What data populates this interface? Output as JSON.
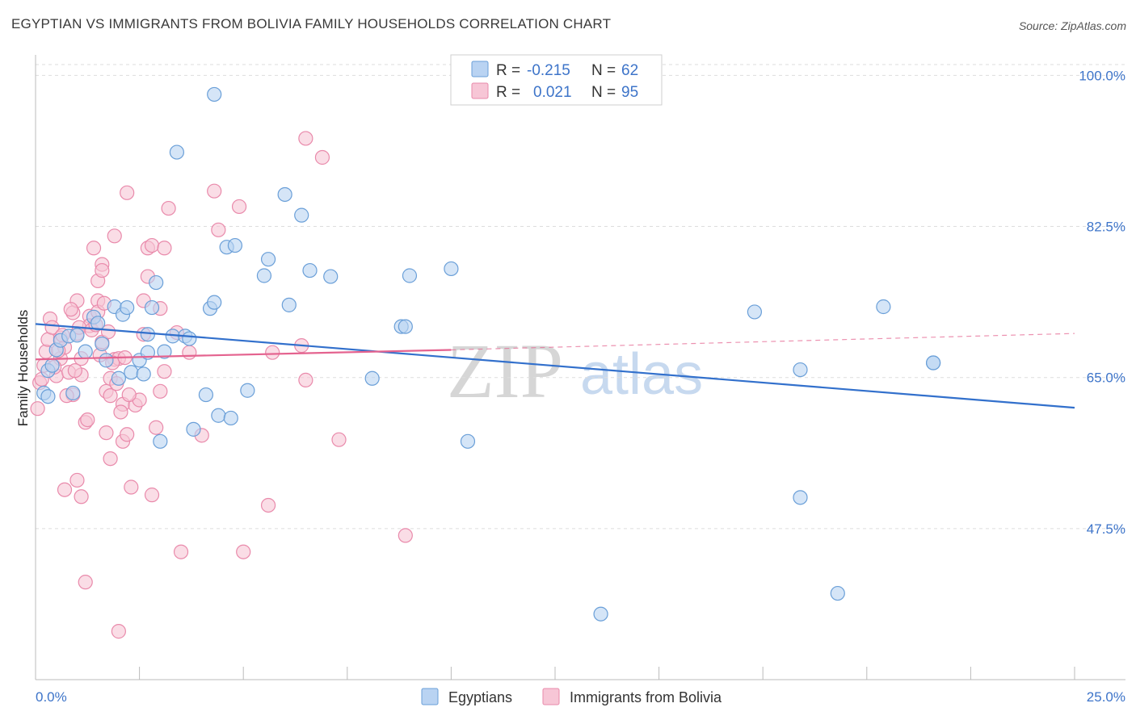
{
  "title": "EGYPTIAN VS IMMIGRANTS FROM BOLIVIA FAMILY HOUSEHOLDS CORRELATION CHART",
  "source": "Source: ZipAtlas.com",
  "watermark": {
    "zip": "ZIP",
    "atlas": "atlas"
  },
  "legend": {
    "rows": [
      {
        "r_label": "R =",
        "r_value": "-0.215",
        "n_label": "N =",
        "n_value": "62"
      },
      {
        "r_label": "R =",
        "r_value": "0.021",
        "n_label": "N =",
        "n_value": "95"
      }
    ]
  },
  "bottom_legend": [
    "Egyptians",
    "Immigrants from Bolivia"
  ],
  "colors": {
    "blue_fill": "#b9d3f2",
    "blue_stroke": "#6a9fd8",
    "blue_line": "#3270cc",
    "pink_fill": "#f7c6d6",
    "pink_stroke": "#e98aab",
    "pink_line": "#e4638f",
    "axis_text": "#3d74c9",
    "grid": "#dddddd"
  },
  "chart_data": {
    "type": "scatter",
    "title": "EGYPTIAN VS IMMIGRANTS FROM BOLIVIA FAMILY HOUSEHOLDS CORRELATION CHART",
    "xlabel": "",
    "ylabel": "Family Households",
    "xlim": [
      0,
      25
    ],
    "ylim": [
      30,
      102
    ],
    "x_tick_labels": [
      "0.0%",
      "25.0%"
    ],
    "y_ticks": [
      47.5,
      65.0,
      82.5,
      100.0
    ],
    "y_tick_labels": [
      "47.5%",
      "65.0%",
      "82.5%",
      "100.0%"
    ],
    "grid": true,
    "legend_position": "top-center",
    "series": [
      {
        "name": "Egyptians",
        "r": -0.215,
        "n": 62,
        "trend": {
          "x": [
            0,
            25
          ],
          "y": [
            71.2,
            61.5
          ]
        },
        "points": [
          [
            0.2,
            63.2
          ],
          [
            0.3,
            62.8
          ],
          [
            0.3,
            65.8
          ],
          [
            0.4,
            66.4
          ],
          [
            0.5,
            68.2
          ],
          [
            0.6,
            69.3
          ],
          [
            0.8,
            69.8
          ],
          [
            0.9,
            63.2
          ],
          [
            1.0,
            69.9
          ],
          [
            1.2,
            68.0
          ],
          [
            1.4,
            72.0
          ],
          [
            1.5,
            71.3
          ],
          [
            1.6,
            68.9
          ],
          [
            1.7,
            67.0
          ],
          [
            1.9,
            73.2
          ],
          [
            2.0,
            64.9
          ],
          [
            2.1,
            72.3
          ],
          [
            2.2,
            73.1
          ],
          [
            2.3,
            65.6
          ],
          [
            2.5,
            67.0
          ],
          [
            2.6,
            65.4
          ],
          [
            2.7,
            67.9
          ],
          [
            2.7,
            70.0
          ],
          [
            2.8,
            73.1
          ],
          [
            2.9,
            76.0
          ],
          [
            3.0,
            57.6
          ],
          [
            3.1,
            68.0
          ],
          [
            3.3,
            69.8
          ],
          [
            3.4,
            91.1
          ],
          [
            3.6,
            69.8
          ],
          [
            3.7,
            69.5
          ],
          [
            3.8,
            59.0
          ],
          [
            4.1,
            63.0
          ],
          [
            4.2,
            73.0
          ],
          [
            4.3,
            73.7
          ],
          [
            4.3,
            97.8
          ],
          [
            4.4,
            60.6
          ],
          [
            4.6,
            80.1
          ],
          [
            4.7,
            60.3
          ],
          [
            4.8,
            80.3
          ],
          [
            5.1,
            63.5
          ],
          [
            5.5,
            76.8
          ],
          [
            5.6,
            78.7
          ],
          [
            6.0,
            86.2
          ],
          [
            6.1,
            73.4
          ],
          [
            6.4,
            83.8
          ],
          [
            6.6,
            77.4
          ],
          [
            7.1,
            76.7
          ],
          [
            8.1,
            64.9
          ],
          [
            8.8,
            70.9
          ],
          [
            8.9,
            70.9
          ],
          [
            9.0,
            76.8
          ],
          [
            10.0,
            77.6
          ],
          [
            10.4,
            57.6
          ],
          [
            13.6,
            37.6
          ],
          [
            17.3,
            72.6
          ],
          [
            18.4,
            65.9
          ],
          [
            18.4,
            51.1
          ],
          [
            19.3,
            40.0
          ],
          [
            20.4,
            73.2
          ],
          [
            21.6,
            66.7
          ],
          [
            21.6,
            66.7
          ]
        ]
      },
      {
        "name": "Immigrants from Bolivia",
        "r": 0.021,
        "n": 95,
        "trend": {
          "x": [
            0,
            10
          ],
          "y": [
            67.1,
            68.2
          ]
        },
        "trend_dashed": {
          "x": [
            10,
            25
          ],
          "y": [
            68.2,
            70.1
          ]
        },
        "points": [
          [
            0.05,
            61.4
          ],
          [
            0.1,
            64.4
          ],
          [
            0.15,
            64.8
          ],
          [
            0.2,
            66.4
          ],
          [
            0.25,
            68.0
          ],
          [
            0.3,
            69.4
          ],
          [
            0.35,
            71.8
          ],
          [
            0.4,
            70.8
          ],
          [
            0.5,
            65.2
          ],
          [
            0.6,
            67.2
          ],
          [
            0.6,
            69.6
          ],
          [
            0.7,
            68.5
          ],
          [
            0.7,
            52.0
          ],
          [
            0.8,
            65.6
          ],
          [
            0.9,
            72.5
          ],
          [
            0.9,
            63.0
          ],
          [
            1.0,
            70.1
          ],
          [
            1.0,
            73.9
          ],
          [
            1.0,
            53.1
          ],
          [
            1.1,
            67.2
          ],
          [
            1.1,
            65.3
          ],
          [
            1.1,
            51.2
          ],
          [
            1.2,
            59.8
          ],
          [
            1.2,
            41.3
          ],
          [
            1.3,
            72.1
          ],
          [
            1.3,
            71.0
          ],
          [
            1.4,
            80.0
          ],
          [
            1.5,
            76.2
          ],
          [
            1.5,
            73.9
          ],
          [
            1.5,
            72.6
          ],
          [
            1.6,
            69.1
          ],
          [
            1.6,
            78.1
          ],
          [
            1.6,
            77.4
          ],
          [
            1.7,
            63.4
          ],
          [
            1.7,
            58.6
          ],
          [
            1.8,
            64.9
          ],
          [
            1.8,
            62.9
          ],
          [
            1.8,
            55.6
          ],
          [
            1.9,
            67.1
          ],
          [
            1.9,
            81.4
          ],
          [
            2.0,
            67.2
          ],
          [
            2.0,
            35.6
          ],
          [
            2.1,
            61.9
          ],
          [
            2.1,
            57.6
          ],
          [
            2.2,
            86.4
          ],
          [
            2.2,
            58.4
          ],
          [
            2.3,
            52.3
          ],
          [
            2.4,
            61.8
          ],
          [
            2.5,
            62.4
          ],
          [
            2.6,
            73.9
          ],
          [
            2.6,
            70.0
          ],
          [
            2.7,
            76.7
          ],
          [
            2.7,
            80.0
          ],
          [
            2.8,
            80.3
          ],
          [
            2.8,
            51.4
          ],
          [
            2.9,
            59.2
          ],
          [
            3.0,
            63.4
          ],
          [
            3.0,
            73.0
          ],
          [
            3.1,
            65.7
          ],
          [
            3.1,
            80.0
          ],
          [
            3.2,
            84.6
          ],
          [
            3.4,
            70.2
          ],
          [
            3.5,
            44.8
          ],
          [
            3.7,
            67.9
          ],
          [
            4.0,
            58.3
          ],
          [
            4.3,
            86.6
          ],
          [
            4.4,
            82.1
          ],
          [
            4.9,
            84.8
          ],
          [
            5.0,
            44.8
          ],
          [
            5.6,
            50.2
          ],
          [
            5.7,
            67.9
          ],
          [
            6.4,
            68.7
          ],
          [
            6.5,
            64.7
          ],
          [
            6.5,
            92.7
          ],
          [
            6.9,
            90.5
          ],
          [
            7.3,
            57.8
          ],
          [
            8.9,
            46.7
          ],
          [
            0.45,
            66.2
          ],
          [
            0.55,
            68.1
          ],
          [
            0.65,
            69.9
          ],
          [
            0.75,
            62.9
          ],
          [
            0.85,
            72.9
          ],
          [
            0.95,
            65.8
          ],
          [
            1.05,
            70.8
          ],
          [
            1.25,
            60.1
          ],
          [
            1.35,
            70.5
          ],
          [
            1.45,
            71.1
          ],
          [
            1.55,
            67.6
          ],
          [
            1.65,
            73.6
          ],
          [
            1.75,
            70.3
          ],
          [
            1.85,
            66.7
          ],
          [
            1.95,
            64.3
          ],
          [
            2.05,
            61.0
          ],
          [
            2.15,
            67.3
          ],
          [
            2.25,
            63.0
          ]
        ]
      }
    ]
  }
}
